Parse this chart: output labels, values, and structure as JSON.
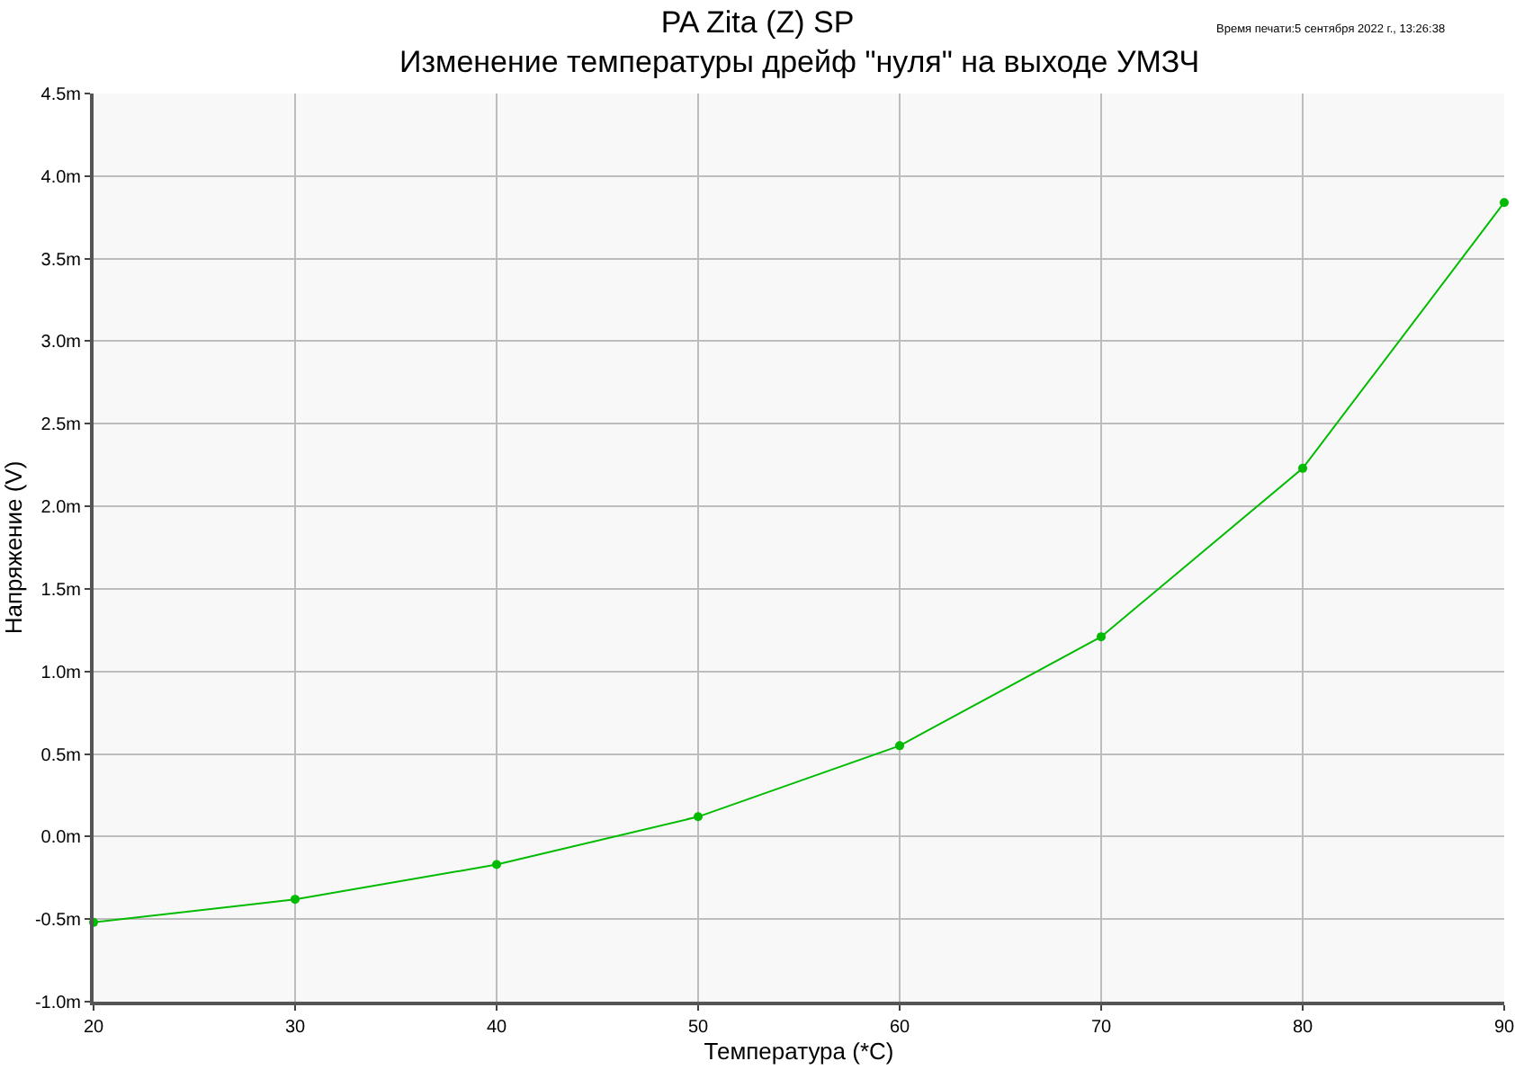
{
  "chart_data": {
    "type": "line",
    "title": "PA Zita (Z) SP",
    "subtitle": "Изменение температуры дрейф \"нуля\" на выходе УМЗЧ",
    "xlabel": "Температура (*C)",
    "ylabel": "Напряжение (V)",
    "annotations": [
      "Время печати:5 сентября 2022 г., 13:26:38"
    ],
    "x": [
      20,
      30,
      40,
      50,
      60,
      70,
      80,
      90
    ],
    "series": [
      {
        "color": "#00bb00",
        "values": [
          -0.52,
          -0.38,
          -0.17,
          0.12,
          0.55,
          1.21,
          2.23,
          3.84
        ]
      }
    ],
    "xlim": [
      20,
      90
    ],
    "xticks": [
      20,
      30,
      40,
      50,
      60,
      70,
      80,
      90
    ],
    "ylim": [
      -1,
      4.5
    ],
    "yticks": [
      {
        "value": -1,
        "label": "-1.0m"
      },
      {
        "value": -0.5,
        "label": "-0.5m"
      },
      {
        "value": 0,
        "label": "0.0m"
      },
      {
        "value": 0.5,
        "label": "0.5m"
      },
      {
        "value": 1,
        "label": "1.0m"
      },
      {
        "value": 1.5,
        "label": "1.5m"
      },
      {
        "value": 2,
        "label": "2.0m"
      },
      {
        "value": 2.5,
        "label": "2.5m"
      },
      {
        "value": 3,
        "label": "3.0m"
      },
      {
        "value": 3.5,
        "label": "3.5m"
      },
      {
        "value": 4,
        "label": "4.0m"
      },
      {
        "value": 4.5,
        "label": "4.5m"
      }
    ],
    "grid": true,
    "marker": "circle",
    "line_style": "solid"
  }
}
